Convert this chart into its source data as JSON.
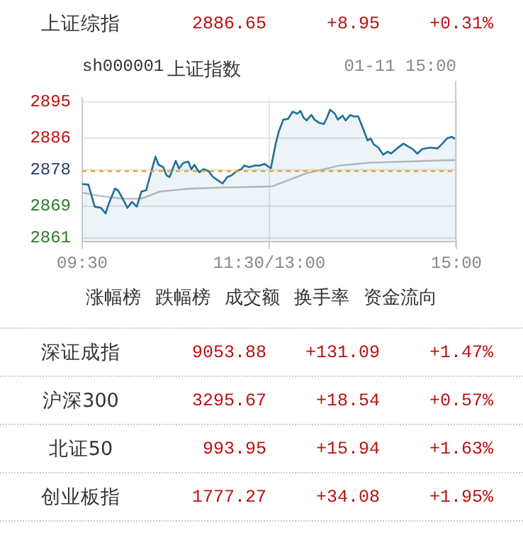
{
  "chart_data": [
    {
      "type": "other",
      "annotations": [
        "上证综指",
        "2886.65",
        "+8.95",
        "+0.31%"
      ]
    },
    {
      "type": "line",
      "title": "上证指数",
      "annotations": [
        "sh000001",
        "01-11 15:00"
      ],
      "categories": [
        "09:30",
        null,
        null,
        null,
        null,
        null,
        null,
        null,
        null,
        null,
        null,
        null,
        null,
        null,
        null,
        null,
        null,
        null,
        null,
        null,
        null,
        null,
        null,
        null,
        null,
        null,
        null,
        null,
        null,
        null,
        null,
        null,
        null,
        null,
        null,
        null,
        null,
        null,
        null,
        null,
        null,
        null,
        null,
        null,
        null,
        null,
        null,
        null,
        null,
        null,
        null,
        null,
        null,
        null,
        null,
        null,
        null,
        null,
        null,
        null,
        null,
        null,
        null,
        null,
        null,
        null,
        null,
        null,
        null,
        null,
        null,
        null,
        null,
        null,
        null,
        null,
        null,
        null,
        null,
        null,
        null,
        null,
        null,
        null,
        null,
        null,
        null,
        null,
        null,
        null,
        null,
        null,
        null,
        null,
        null,
        null,
        null,
        null,
        null,
        null,
        null,
        null,
        null,
        null,
        null,
        null,
        null,
        null,
        null,
        null,
        null,
        null,
        null,
        null,
        null,
        null,
        null,
        null,
        null,
        null,
        "11:30/13:00",
        null,
        null,
        null,
        null,
        null,
        null,
        null,
        null,
        null,
        null,
        null,
        null,
        null,
        null,
        null,
        null,
        null,
        null,
        null,
        null,
        null,
        null,
        null,
        null,
        null,
        null,
        null,
        null,
        null,
        null,
        null,
        null,
        null,
        null,
        null,
        null,
        null,
        null,
        null,
        null,
        null,
        null,
        null,
        null,
        null,
        null,
        null,
        null,
        null,
        null,
        null,
        null,
        null,
        null,
        null,
        null,
        null,
        null,
        null,
        null,
        null,
        null,
        null,
        null,
        null,
        null,
        null,
        null,
        null,
        null,
        null,
        null,
        null,
        null,
        null,
        null,
        null,
        null,
        null,
        null,
        null,
        null,
        null,
        null,
        null,
        null,
        null,
        null,
        null,
        null,
        null,
        null,
        null,
        null,
        null,
        null,
        null,
        null,
        null,
        null,
        null,
        null,
        null,
        null,
        null,
        null,
        null,
        null,
        null,
        null,
        null,
        null,
        null,
        null,
        null,
        null,
        null,
        null,
        null,
        "15:00"
      ],
      "series": [
        {
          "type": "area",
          "color": "#1f6f9a",
          "values": [
            2874.5,
            null,
            null,
            null,
            2874.3,
            null,
            null,
            null,
            2868.8,
            null,
            null,
            null,
            2868.5,
            null,
            null,
            2867.1,
            null,
            2869.5,
            null,
            null,
            null,
            2873.3,
            null,
            2872.9,
            null,
            null,
            2870.8,
            null,
            null,
            2868.5,
            null,
            null,
            2870.0,
            null,
            null,
            2868.8,
            null,
            null,
            2872.6,
            null,
            null,
            2872.9,
            null,
            null,
            2877.2,
            null,
            null,
            2881.3,
            null,
            2879.3,
            null,
            null,
            2878.7,
            null,
            2876.7,
            null,
            2876.2,
            null,
            null,
            null,
            2880.3,
            null,
            2878.4,
            null,
            null,
            2879.8,
            null,
            null,
            2880.1,
            null,
            2878.2,
            null,
            2879.3,
            null,
            null,
            2877.4,
            null,
            null,
            2878.2,
            null,
            null,
            2877.7,
            null,
            null,
            2876.2,
            null,
            null,
            2875.4,
            null,
            null,
            2874.6,
            null,
            null,
            2876.2,
            null,
            null,
            2876.7,
            null,
            null,
            2877.7,
            null,
            null,
            2878.2,
            null,
            2879.1,
            null,
            null,
            2878.7,
            null,
            null,
            null,
            2879.1,
            null,
            null,
            2879.1,
            null,
            null,
            2879.5,
            null,
            null,
            null,
            2878.4,
            null,
            null,
            2884.4,
            null,
            2887.5,
            null,
            null,
            2890.6,
            null,
            null,
            2890.8,
            null,
            null,
            2892.6,
            null,
            null,
            2892.1,
            null,
            2892.8,
            null,
            2891.1,
            null,
            2890.4,
            null,
            null,
            2891.8,
            null,
            2890.6,
            null,
            null,
            2889.8,
            null,
            null,
            2889.5,
            null,
            2891.1,
            null,
            2893.1,
            null,
            null,
            2892.1,
            null,
            2890.6,
            null,
            null,
            2891.6,
            null,
            2890.4,
            null,
            null,
            2891.8,
            null,
            2891.4,
            null,
            null,
            2891.4,
            null,
            2889.5,
            null,
            2887.5,
            null,
            2885.4,
            null,
            2885.9,
            null,
            2884.4,
            null,
            null,
            2883.6,
            null,
            null,
            2881.8,
            null,
            null,
            2882.6,
            null,
            2882.1,
            null,
            null,
            null,
            2883.4,
            null,
            null,
            null,
            2884.6,
            null,
            null,
            2883.9,
            null,
            null,
            2883.2,
            null,
            null,
            2882.1,
            null,
            null,
            2883.2,
            null,
            null,
            null,
            null,
            2883.6,
            null,
            null,
            null,
            null,
            2883.4,
            null,
            null,
            2884.6,
            null,
            null,
            2885.9,
            null,
            null,
            2886.3,
            null,
            null,
            2885.6
          ]
        },
        {
          "type": "line",
          "color": "#bbbbbb",
          "values": [
            2872.3,
            null,
            null,
            null,
            null,
            null,
            null,
            null,
            null,
            null,
            null,
            2871.5,
            null,
            null,
            null,
            null,
            null,
            null,
            null,
            null,
            null,
            null,
            null,
            null,
            null,
            null,
            2870.8,
            null,
            null,
            null,
            null,
            null,
            null,
            null,
            null,
            null,
            null,
            null,
            2870.8,
            null,
            null,
            null,
            null,
            null,
            null,
            null,
            null,
            null,
            null,
            null,
            2872.6,
            null,
            null,
            null,
            null,
            null,
            null,
            null,
            null,
            null,
            null,
            null,
            null,
            null,
            null,
            null,
            null,
            null,
            null,
            2873.3,
            null,
            null,
            null,
            null,
            null,
            null,
            null,
            null,
            null,
            null,
            null,
            null,
            null,
            null,
            null,
            null,
            null,
            null,
            null,
            null,
            2873.6,
            null,
            null,
            null,
            null,
            null,
            null,
            null,
            null,
            null,
            null,
            null,
            null,
            null,
            null,
            null,
            null,
            null,
            null,
            null,
            null,
            null,
            null,
            null,
            null,
            2873.8,
            null,
            null,
            null,
            null,
            null,
            null,
            2873.9,
            null,
            null,
            null,
            null,
            null,
            null,
            null,
            null,
            null,
            null,
            null,
            null,
            null,
            null,
            null,
            null,
            null,
            null,
            null,
            null,
            null,
            2877.2,
            null,
            null,
            null,
            null,
            null,
            null,
            null,
            null,
            null,
            null,
            null,
            null,
            null,
            null,
            null,
            null,
            null,
            null,
            null,
            null,
            2879.1,
            null,
            null,
            null,
            null,
            null,
            null,
            null,
            null,
            null,
            null,
            null,
            null,
            null,
            null,
            null,
            null,
            null,
            null,
            2879.8,
            null,
            null,
            null,
            null,
            null,
            null,
            null,
            null,
            null,
            null,
            null,
            null,
            null,
            null,
            null,
            null,
            null,
            null,
            null,
            null,
            null,
            null,
            null,
            2880.1,
            null,
            null,
            null,
            null,
            null,
            null,
            null,
            null,
            null,
            null,
            null,
            null,
            null,
            null,
            null,
            null,
            null,
            null,
            null,
            null,
            null,
            null,
            null,
            null,
            null,
            null,
            null,
            null,
            null,
            null,
            null,
            2880.5
          ]
        }
      ],
      "ylim": [
        2860,
        2896
      ],
      "yticks": [
        2861,
        2869,
        2878,
        2886,
        2895
      ],
      "ref_lines": [
        {
          "axis": "y",
          "value": 2877.7,
          "color": "#f0a030",
          "line_style": "dashed"
        }
      ],
      "grid": true,
      "marker": "none"
    },
    {
      "type": "other",
      "annotations": [
        "涨幅榜",
        "跌幅榜",
        "成交额",
        "换手率",
        "资金流向"
      ]
    },
    {
      "type": "other",
      "annotations": [
        "深证成指",
        "9053.88",
        "+131.09",
        "+1.47%",
        "沪深300",
        "3295.67",
        "+18.54",
        "+0.57%",
        "北证50",
        "993.95",
        "+15.94",
        "+1.63%",
        "创业板指",
        "1777.27",
        "+34.08",
        "+1.95%"
      ]
    }
  ]
}
